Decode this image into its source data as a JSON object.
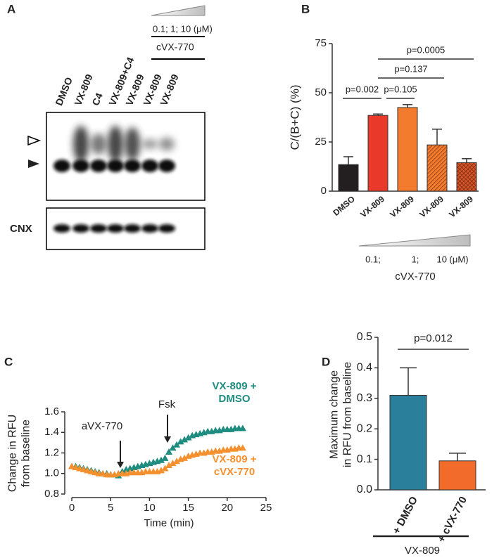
{
  "blot": {
    "panel_label": "A",
    "lanes": [
      "DMSO",
      "VX-809",
      "C4",
      "VX-809+C4",
      "VX-809",
      "VX-809",
      "VX-809"
    ],
    "dose_labels": "0.1;  1;  10  (μM)",
    "drug": "cVX-770",
    "loading_control": "CNX"
  },
  "chart_data": [
    {
      "type": "bar",
      "panel_label": "B",
      "y_label": "C/(B+C) (%)",
      "categories": [
        "DMSO",
        "VX-809",
        "VX-809",
        "VX-809",
        "VX-809"
      ],
      "values": [
        13.5,
        38.5,
        42.5,
        23.5,
        14.5
      ],
      "errors": [
        4,
        0.7,
        1.5,
        8,
        2
      ],
      "colors": [
        "#231f20",
        "#e8392a",
        "#f27b2e",
        "#f27b2e",
        "#d4552a"
      ],
      "hatch": [
        "none",
        "none",
        "none",
        "diagonal",
        "cross"
      ],
      "ylim": [
        0,
        75
      ],
      "yticks": [
        0,
        25,
        50,
        75
      ],
      "annotations": [
        {
          "text": "p=0.002",
          "from": 0,
          "to": 1
        },
        {
          "text": "p=0.105",
          "from": 1,
          "to": 2
        },
        {
          "text": "p=0.137",
          "from": 1,
          "to": 3
        },
        {
          "text": "p=0.0005",
          "from": 1,
          "to": 4
        }
      ],
      "dose_labels": [
        "0.1;",
        "1;",
        "10 (μM)"
      ],
      "dose_title": "cVX-770"
    },
    {
      "type": "scatter",
      "panel_label": "C",
      "x_label": "Time (min)",
      "y_label": [
        "Change in RFU",
        "from baseline"
      ],
      "x": [
        0,
        0.5,
        1,
        1.5,
        2,
        2.5,
        3,
        3.5,
        4,
        4.5,
        5,
        5.5,
        6,
        6.5,
        7,
        7.5,
        8,
        8.5,
        9,
        9.5,
        10,
        10.5,
        11,
        11.5,
        12,
        12.5,
        13,
        13.5,
        14,
        14.5,
        15,
        15.5,
        16,
        16.5,
        17,
        17.5,
        18,
        18.5,
        19,
        19.5,
        20,
        20.5,
        21,
        21.5,
        22
      ],
      "series": [
        {
          "name": "VX-809 + DMSO",
          "color": "#1f8c80",
          "values": [
            1.07,
            1.07,
            1.06,
            1.05,
            1.04,
            1.03,
            1.02,
            1.01,
            1.0,
            1.0,
            0.99,
            0.99,
            0.98,
            1.02,
            1.04,
            1.05,
            1.06,
            1.07,
            1.08,
            1.09,
            1.1,
            1.11,
            1.12,
            1.13,
            1.15,
            1.21,
            1.25,
            1.28,
            1.31,
            1.33,
            1.35,
            1.37,
            1.38,
            1.39,
            1.4,
            1.41,
            1.41,
            1.42,
            1.42,
            1.43,
            1.43,
            1.43,
            1.44,
            1.44,
            1.44
          ]
        },
        {
          "name": "VX-809 + cVX-770",
          "color": "#f5902e",
          "values": [
            1.07,
            1.06,
            1.05,
            1.04,
            1.03,
            1.02,
            1.01,
            1.0,
            1.0,
            0.99,
            0.99,
            0.99,
            1.0,
            1.0,
            1.0,
            1.01,
            1.01,
            1.01,
            1.01,
            1.02,
            1.02,
            1.02,
            1.02,
            1.03,
            1.05,
            1.08,
            1.1,
            1.12,
            1.14,
            1.15,
            1.17,
            1.18,
            1.19,
            1.2,
            1.2,
            1.21,
            1.21,
            1.22,
            1.22,
            1.23,
            1.23,
            1.24,
            1.24,
            1.25,
            1.25
          ]
        }
      ],
      "xlim": [
        0,
        25
      ],
      "xticks": [
        0,
        5,
        10,
        15,
        20,
        25
      ],
      "ylim": [
        0.8,
        1.6
      ],
      "yticks": [
        0.8,
        {
          "value": 1.0,
          "label": "1.0"
        },
        1.2,
        1.4,
        1.6
      ],
      "annotations": [
        "aVX-770",
        "Fsk"
      ]
    },
    {
      "type": "bar",
      "panel_label": "D",
      "y_label": [
        "Maximum change",
        "in RFU from baseline"
      ],
      "categories": [
        "+ DMSO",
        "+ cVX-770"
      ],
      "values": [
        0.31,
        0.095
      ],
      "errors": [
        0.09,
        0.025
      ],
      "colors": [
        "#2a7f9a",
        "#f26b2a"
      ],
      "ylim": [
        0,
        0.5
      ],
      "yticks": [
        {
          "value": 0,
          "label": "0.0"
        },
        0.1,
        0.2,
        0.3,
        0.4,
        0.5
      ],
      "annotations": [
        {
          "text": "p=0.012",
          "from": 0,
          "to": 1
        }
      ],
      "group_label": "VX-809"
    }
  ]
}
